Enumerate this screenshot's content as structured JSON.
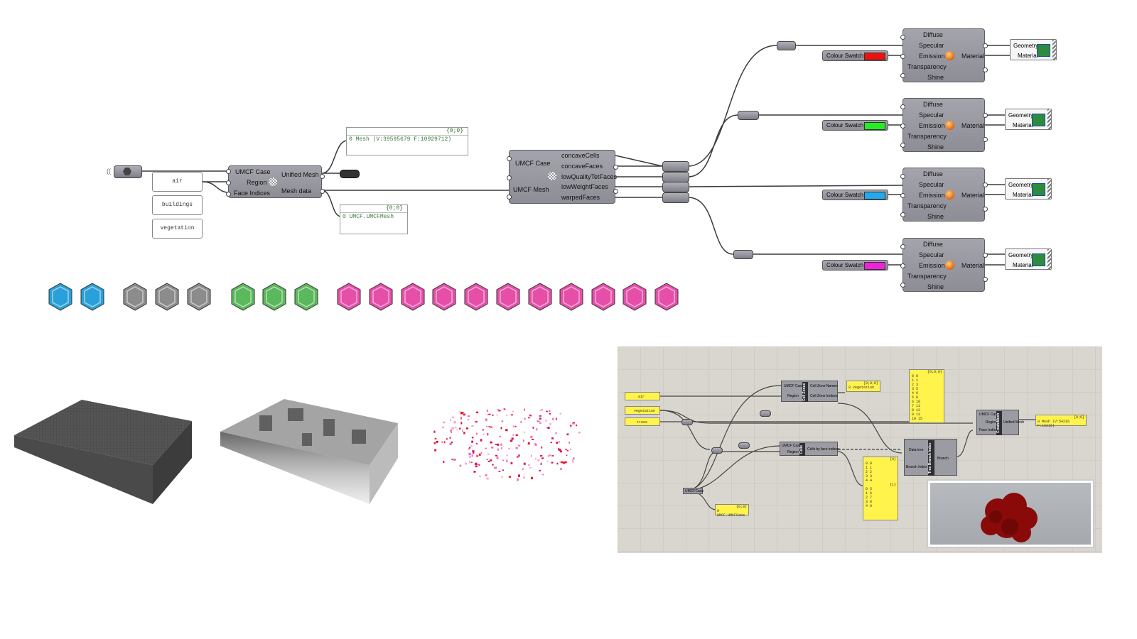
{
  "params": {
    "air": "air",
    "buildings": "buildings",
    "vegetation": "vegetation"
  },
  "deconstruct": {
    "inputs": [
      "UMCF Case",
      "Region",
      "Face Indices"
    ],
    "outputs": [
      "Unified Mesh",
      "Mesh data"
    ]
  },
  "panel_mesh": {
    "header": "{0;0}",
    "index": "0",
    "value": "Mesh (V:39595679  F:10929712)"
  },
  "panel_umcf": {
    "header": "{0;0}",
    "index": "0",
    "value": "UMCF.UMCFMesh"
  },
  "quality": {
    "inputs": [
      "UMCF Case",
      "UMCF Mesh"
    ],
    "outputs": [
      "concaveCells",
      "concaveFaces",
      "lowQualityTetFaces",
      "lowWeightFaces",
      "warpedFaces"
    ]
  },
  "material": {
    "inputs": [
      "Diffuse",
      "Specular",
      "Emission",
      "Transparency",
      "Shine"
    ],
    "output": "Material"
  },
  "swatch_label": "Colour Swatch",
  "swatch_colors": [
    "#ee1111",
    "#22ee22",
    "#22aaee",
    "#ee22dd"
  ],
  "preview": {
    "geometry": "Geometry",
    "material": "Material"
  },
  "icon_groups": [
    {
      "name": "fluid",
      "color": "#2aa0d8"
    },
    {
      "name": "buildings",
      "color": "#8c8c8c"
    },
    {
      "name": "vegetation",
      "color": "#5cb85c"
    },
    {
      "name": "mesh-tools",
      "color": "#e64fa8"
    }
  ],
  "canvas2": {
    "inputs": [
      "air",
      "vegetation",
      "trees"
    ],
    "cell_zone": {
      "inputs": [
        "UMCF Case",
        "Region"
      ],
      "outputs": [
        "Cell Zone Names",
        "Cell Zone Indices"
      ],
      "title": "Cell Zones"
    },
    "cells_comp": {
      "inputs": [
        "UMCF Case",
        "Region"
      ],
      "outputs": [
        "Cells by face indices"
      ],
      "title": "Cells"
    },
    "tree_branch": {
      "inputs": [
        "Data tree",
        "Branch Index"
      ],
      "outputs": [
        "Branch"
      ],
      "title": "Tree Branch Index"
    },
    "create": {
      "inputs": [
        "UMCF Case",
        "Region",
        "Face Indices"
      ],
      "outputs": [
        "Unified Mesh"
      ],
      "title": "CreateMesh"
    },
    "panel_zone": {
      "header": "{0;0;0}",
      "value": "0 vegetation"
    },
    "panel_list": {
      "header": "{0;0;0}",
      "rows": [
        "0 0",
        "1 1",
        "2 3",
        "3 5",
        "4 6",
        "5 8",
        "6 10",
        "7 11",
        "8 12",
        "9 13",
        "10 15"
      ]
    },
    "panel_list2": {
      "header1": "{0}",
      "rows1": [
        "0 0",
        "1 1",
        "2 2",
        "3 3",
        "4 4"
      ],
      "header2": "{1}",
      "rows2": [
        "0 5",
        "1 6",
        "2 7",
        "3 8",
        "4 9"
      ]
    },
    "panel_mesh": {
      "header": "{0;0}",
      "value": "0 Mesh (V:54216  F:16215)"
    },
    "umcf_label": "UMCFCase",
    "panel_case": {
      "header": "{0;0}",
      "value": "0 UMCF.UMCFCase"
    }
  }
}
